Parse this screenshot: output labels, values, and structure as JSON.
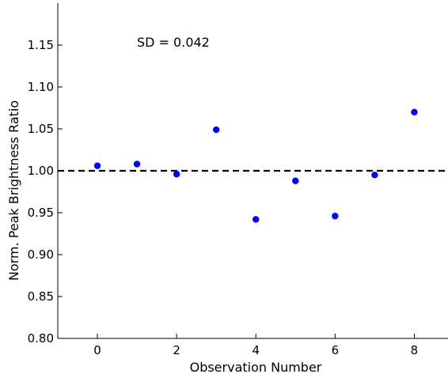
{
  "chart_data": {
    "type": "scatter",
    "title": "",
    "xlabel": "Observation Number",
    "ylabel": "Norm. Peak Brightness Ratio",
    "xlim": [
      -1,
      8.85
    ],
    "ylim": [
      0.8,
      1.2
    ],
    "xticks": [
      0,
      2,
      4,
      6,
      8
    ],
    "xtick_labels": [
      "0",
      "2",
      "4",
      "6",
      "8"
    ],
    "yticks": [
      0.8,
      0.85,
      0.9,
      0.95,
      1.0,
      1.05,
      1.1,
      1.15
    ],
    "ytick_labels": [
      "0.80",
      "0.85",
      "0.90",
      "0.95",
      "1.00",
      "1.05",
      "1.10",
      "1.15"
    ],
    "grid": false,
    "reference_line": {
      "y": 1.0,
      "style": "dashed",
      "color": "#000000"
    },
    "annotation": "SD = 0.042",
    "marker_color": "#0000ff",
    "series": [
      {
        "x": [
          0,
          1,
          2,
          3,
          4,
          5,
          6,
          7,
          8
        ],
        "y": [
          1.006,
          1.008,
          0.996,
          1.049,
          0.942,
          0.988,
          0.946,
          0.995,
          1.07
        ]
      }
    ]
  }
}
